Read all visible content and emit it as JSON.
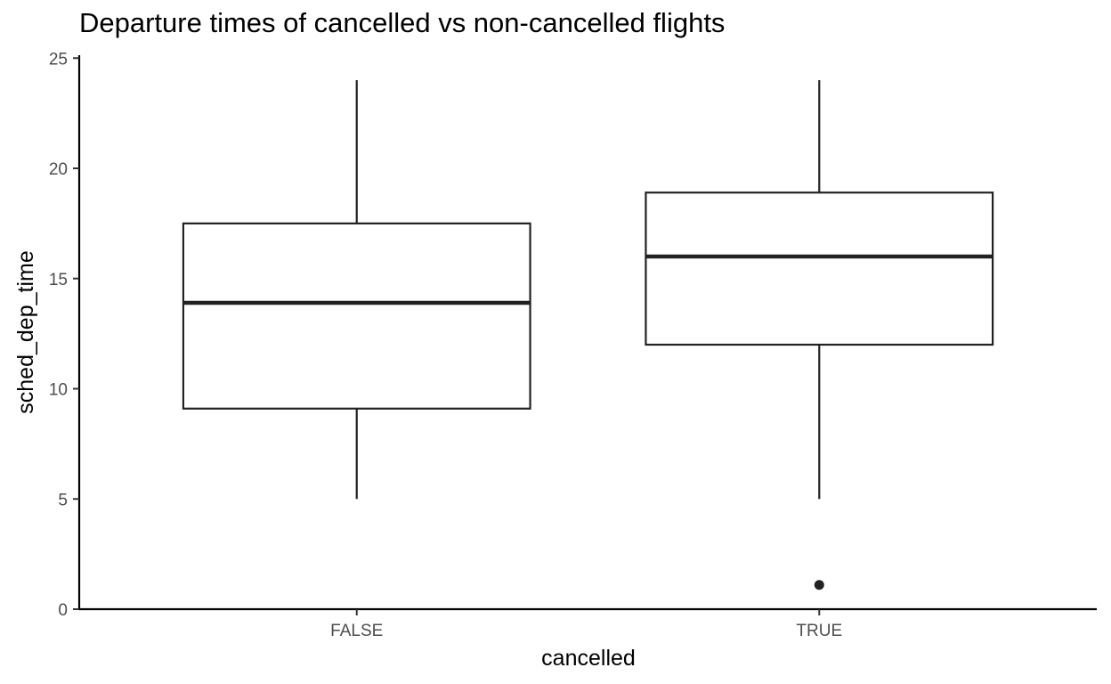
{
  "chart_data": {
    "type": "box",
    "title": "Departure times of cancelled vs non-cancelled flights",
    "xlabel": "cancelled",
    "ylabel": "sched_dep_time",
    "ylim": [
      0,
      25
    ],
    "yticks": [
      "0",
      "5",
      "10",
      "15",
      "20",
      "25"
    ],
    "grid": false,
    "categories": [
      "FALSE",
      "TRUE"
    ],
    "boxes": [
      {
        "category": "FALSE",
        "whisker_low": 5,
        "q1": 9.1,
        "median": 13.9,
        "q3": 17.5,
        "whisker_high": 24,
        "outliers": []
      },
      {
        "category": "TRUE",
        "whisker_low": 5,
        "q1": 12,
        "median": 16,
        "q3": 18.9,
        "whisker_high": 24,
        "outliers": [
          1.1
        ]
      }
    ]
  }
}
